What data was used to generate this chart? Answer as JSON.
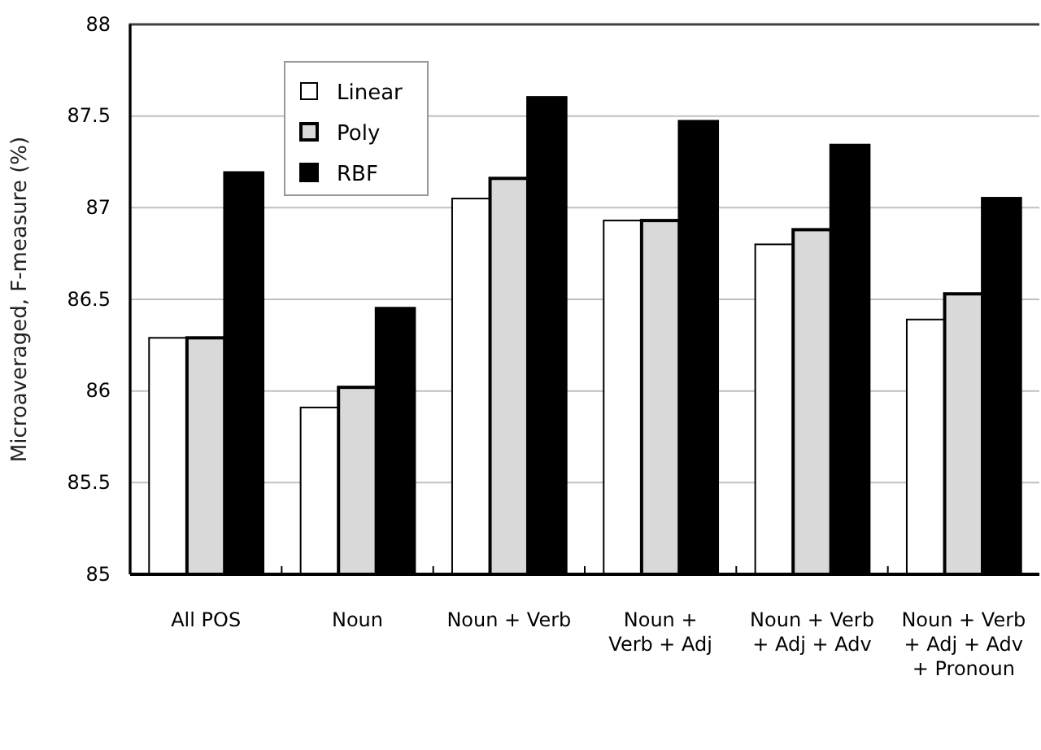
{
  "chart_data": {
    "type": "bar",
    "ylabel": "Microaveraged, F-measure (%)",
    "categories": [
      "All POS",
      "Noun",
      "Noun + Verb",
      "Noun +\nVerb + Adj",
      "Noun + Verb\n+ Adj + Adv",
      "Noun + Verb\n+ Adj + Adv\n+ Pronoun"
    ],
    "series": [
      {
        "name": "Linear",
        "color": "#ffffff",
        "values": [
          86.29,
          85.91,
          87.05,
          86.93,
          86.8,
          86.39
        ]
      },
      {
        "name": "Poly",
        "color": "#d9d9d9",
        "values": [
          86.29,
          86.02,
          87.16,
          86.93,
          86.88,
          86.53
        ]
      },
      {
        "name": "RBF",
        "color": "#000000",
        "values": [
          87.19,
          86.45,
          87.6,
          87.47,
          87.34,
          87.05
        ]
      }
    ],
    "ylim": [
      85,
      88
    ],
    "yticks": [
      85,
      85.5,
      86,
      86.5,
      87,
      87.5,
      88
    ],
    "grid": "y",
    "legend": "top left"
  }
}
